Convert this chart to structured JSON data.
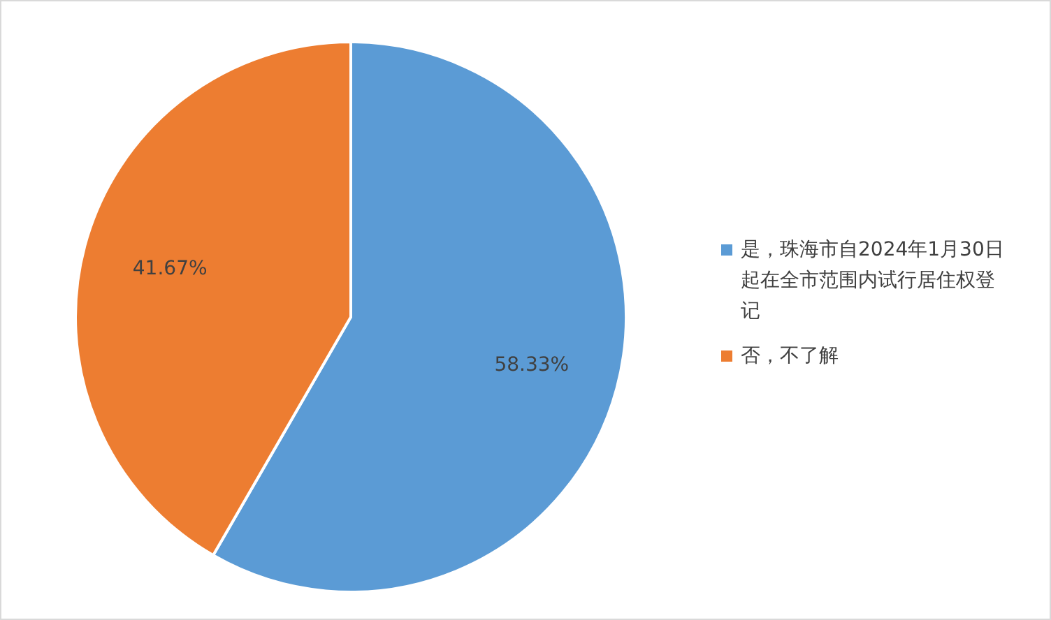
{
  "chart_data": {
    "type": "pie",
    "categories": [
      "是，珠海市自2024年1月30日起在全市范围内试行居住权登记",
      "否，不了解"
    ],
    "values": [
      58.33,
      41.67
    ],
    "colors": [
      "#5b9bd5",
      "#ed7d31"
    ],
    "value_labels": [
      "58.33%",
      "41.67%"
    ],
    "legend": "right"
  }
}
